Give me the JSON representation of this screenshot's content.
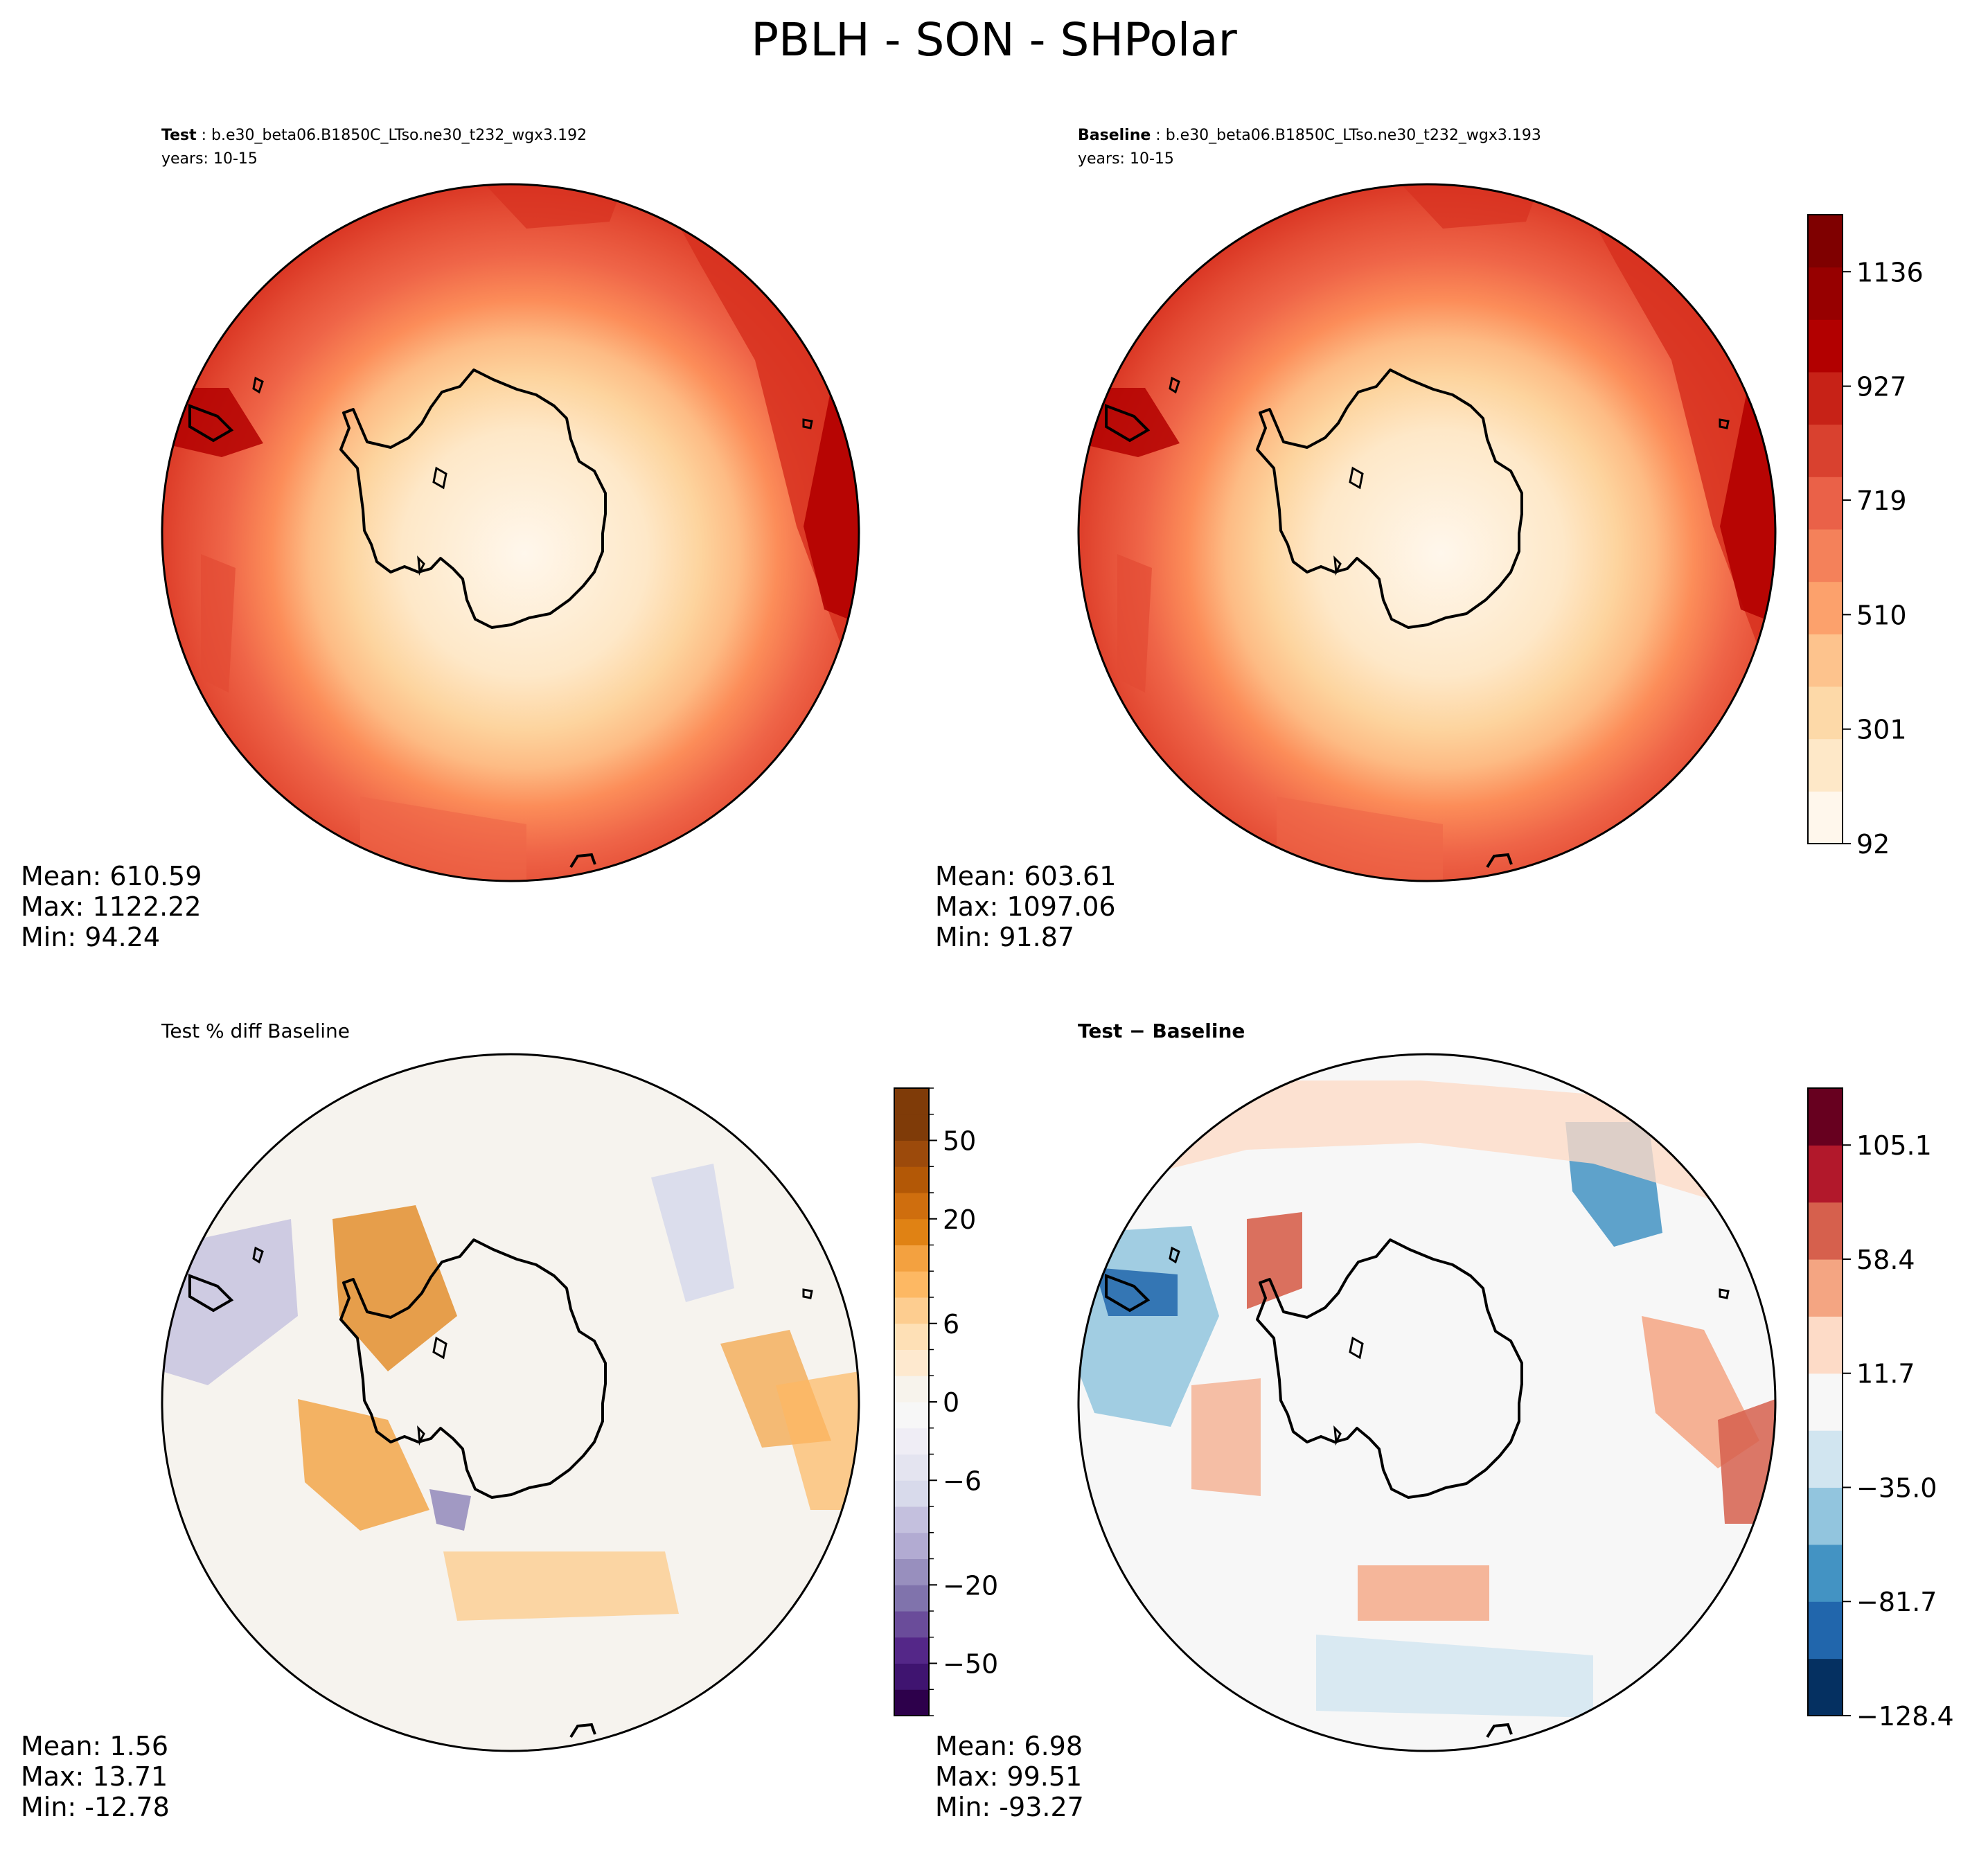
{
  "figure": {
    "title": "PBLH - SON - SHPolar"
  },
  "chart_data": [
    {
      "type": "heatmap",
      "panel": "test",
      "title_label": "Test",
      "title_text": " : b.e30_beta06.B1850C_LTso.ne30_t232_wgx3.192",
      "years": "years: 10-15",
      "region": "Southern Hemisphere polar",
      "colormap": "OrRd",
      "stats": {
        "mean_text": "Mean: 610.59",
        "max_text": "Max: 1122.22",
        "min_text": "Min: 94.24"
      },
      "stats_values": {
        "mean": 610.59,
        "max": 1122.22,
        "min": 94.24
      }
    },
    {
      "type": "heatmap",
      "panel": "baseline",
      "title_label": "Baseline",
      "title_text": " : b.e30_beta06.B1850C_LTso.ne30_t232_wgx3.193",
      "years": "years: 10-15",
      "region": "Southern Hemisphere polar",
      "colormap": "OrRd",
      "stats": {
        "mean_text": "Mean: 603.61",
        "max_text": "Max: 1097.06",
        "min_text": "Min: 91.87"
      },
      "stats_values": {
        "mean": 603.61,
        "max": 1097.06,
        "min": 91.87
      },
      "colorbar": {
        "range": [
          92,
          1240
        ],
        "bands": 12,
        "ticks": [
          92,
          301,
          510,
          719,
          927,
          1136
        ],
        "tick_labels": [
          "92",
          "301",
          "510",
          "719",
          "927",
          "1136"
        ],
        "colors": [
          "#fff7ec",
          "#fee8c8",
          "#fdd9a8",
          "#fdc38d",
          "#fca16c",
          "#f4815a",
          "#ea6148",
          "#d9412f",
          "#c72217",
          "#b20000",
          "#970000",
          "#7f0000"
        ]
      }
    },
    {
      "type": "heatmap",
      "panel": "percent_diff",
      "title_text": "Test % diff Baseline",
      "colormap": "PuOr_r",
      "stats": {
        "mean_text": "Mean:  1.56",
        "max_text": "Max: 13.71",
        "min_text": "Min: -12.78"
      },
      "stats_values": {
        "mean": 1.56,
        "max": 13.71,
        "min": -12.78
      },
      "colorbar": {
        "levels": [
          -100,
          -75,
          -50,
          -40,
          -30,
          -20,
          -15,
          -10,
          -8,
          -6,
          -4,
          -2,
          0,
          2,
          4,
          6,
          8,
          10,
          15,
          20,
          30,
          40,
          50,
          75,
          100
        ],
        "ticks": [
          -50,
          -20,
          -6,
          0,
          6,
          20,
          50
        ],
        "tick_labels": [
          "−50",
          "−20",
          "−6",
          "0",
          "6",
          "20",
          "50"
        ],
        "colors": [
          "#2d004b",
          "#3f1470",
          "#542788",
          "#6a4c9a",
          "#8073ac",
          "#988fbe",
          "#b2abd2",
          "#c4c0de",
          "#d8daeb",
          "#e4e4f0",
          "#efedf5",
          "#f7f7f7",
          "#f7f3ec",
          "#fee9cf",
          "#fee0b6",
          "#fdcd90",
          "#fdb863",
          "#f3a140",
          "#e08214",
          "#cf6e0e",
          "#b35806",
          "#9c4a0b",
          "#7f3b08",
          "#7f3b08"
        ]
      }
    },
    {
      "type": "heatmap",
      "panel": "difference",
      "title_text": "Test − Baseline",
      "colormap": "RdBu_r",
      "stats": {
        "mean_text": "Mean:  6.98",
        "max_text": "Max: 99.51",
        "min_text": "Min: -93.27"
      },
      "stats_values": {
        "mean": 6.98,
        "max": 99.51,
        "min": -93.27
      },
      "colorbar": {
        "range": [
          -128.4,
          128.4
        ],
        "bands": 11,
        "ticks": [
          -128.4,
          -81.7,
          -35.0,
          11.7,
          58.4,
          105.1
        ],
        "tick_labels": [
          "−128.4",
          "−81.7",
          "−35.0",
          "11.7",
          "58.4",
          "105.1"
        ],
        "colors": [
          "#053061",
          "#2166ac",
          "#4393c3",
          "#92c5de",
          "#d1e5f0",
          "#f7f7f7",
          "#fddbc7",
          "#f4a582",
          "#d6604d",
          "#b2182b",
          "#67001f"
        ]
      }
    }
  ]
}
